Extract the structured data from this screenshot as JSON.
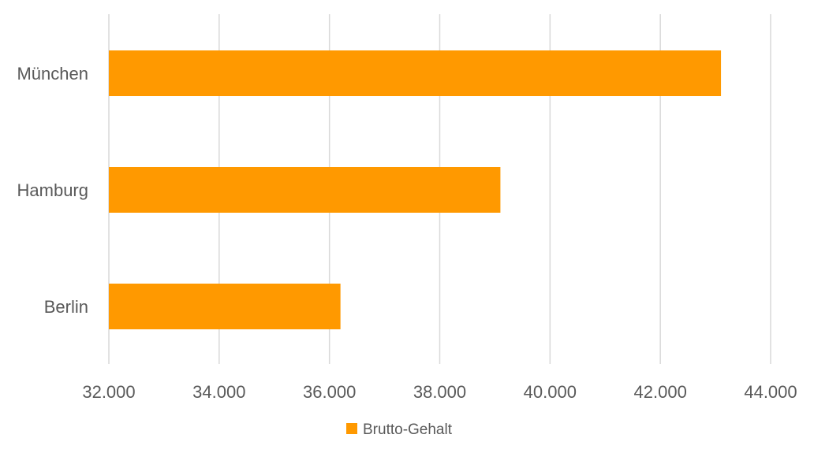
{
  "chart_data": {
    "type": "bar",
    "orientation": "horizontal",
    "categories": [
      "München",
      "Hamburg",
      "Berlin"
    ],
    "series": [
      {
        "name": "Brutto-Gehalt",
        "values": [
          43100,
          39100,
          36200
        ],
        "color": "#FF9900"
      }
    ],
    "xlim": [
      32000,
      44000
    ],
    "xticks": [
      32000,
      34000,
      36000,
      38000,
      40000,
      42000,
      44000
    ],
    "xtick_labels": [
      "32.000",
      "34.000",
      "36.000",
      "38.000",
      "40.000",
      "42.000",
      "44.000"
    ],
    "grid": "vertical",
    "legend_position": "bottom",
    "title": "",
    "xlabel": "",
    "ylabel": ""
  }
}
